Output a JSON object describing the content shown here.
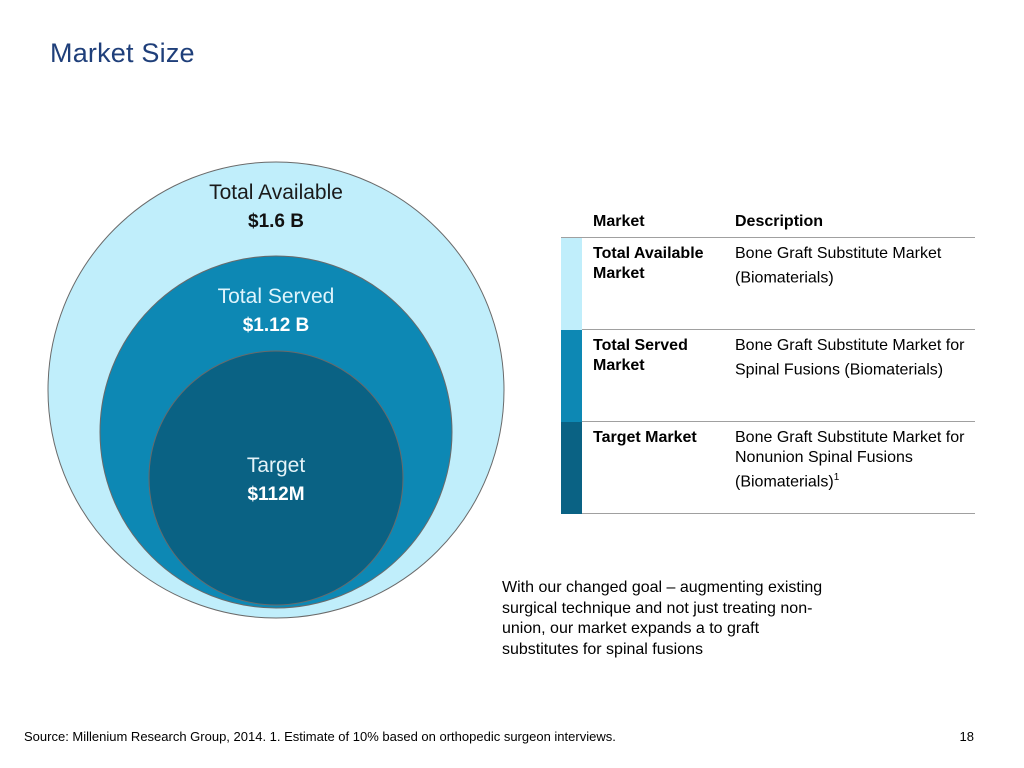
{
  "title": "Market Size",
  "chart_data": {
    "type": "nested-circles",
    "series": [
      {
        "name": "Total Available",
        "value_label": "$1.6 B",
        "value": 1.6,
        "unit": "B",
        "color": "#c0eefb"
      },
      {
        "name": "Total Served",
        "value_label": "$1.12 B",
        "value": 1.12,
        "unit": "B",
        "color": "#0d88b4"
      },
      {
        "name": "Target",
        "value_label": "$112M",
        "value": 0.112,
        "unit": "B",
        "color": "#0a6284"
      }
    ]
  },
  "table": {
    "headers": {
      "market": "Market",
      "description": "Description"
    },
    "rows": [
      {
        "market": "Total Available Market",
        "description": "Bone Graft Substitute Market (Biomaterials)",
        "footnote": "",
        "color": "#c0eefb"
      },
      {
        "market": "Total Served Market",
        "description": "Bone Graft Substitute Market for Spinal Fusions (Biomaterials)",
        "footnote": "",
        "color": "#0d88b4"
      },
      {
        "market": "Target Market",
        "description": "Bone Graft Substitute Market for Nonunion Spinal Fusions (Biomaterials)",
        "footnote": "1",
        "color": "#0a6284"
      }
    ]
  },
  "note": "With our changed goal – augmenting existing surgical technique and not just treating non-union, our market expands a to graft substitutes for spinal fusions",
  "source": "Source: Millenium Research Group, 2014. 1. Estimate of 10% based on orthopedic surgeon interviews.",
  "page_number": "18"
}
